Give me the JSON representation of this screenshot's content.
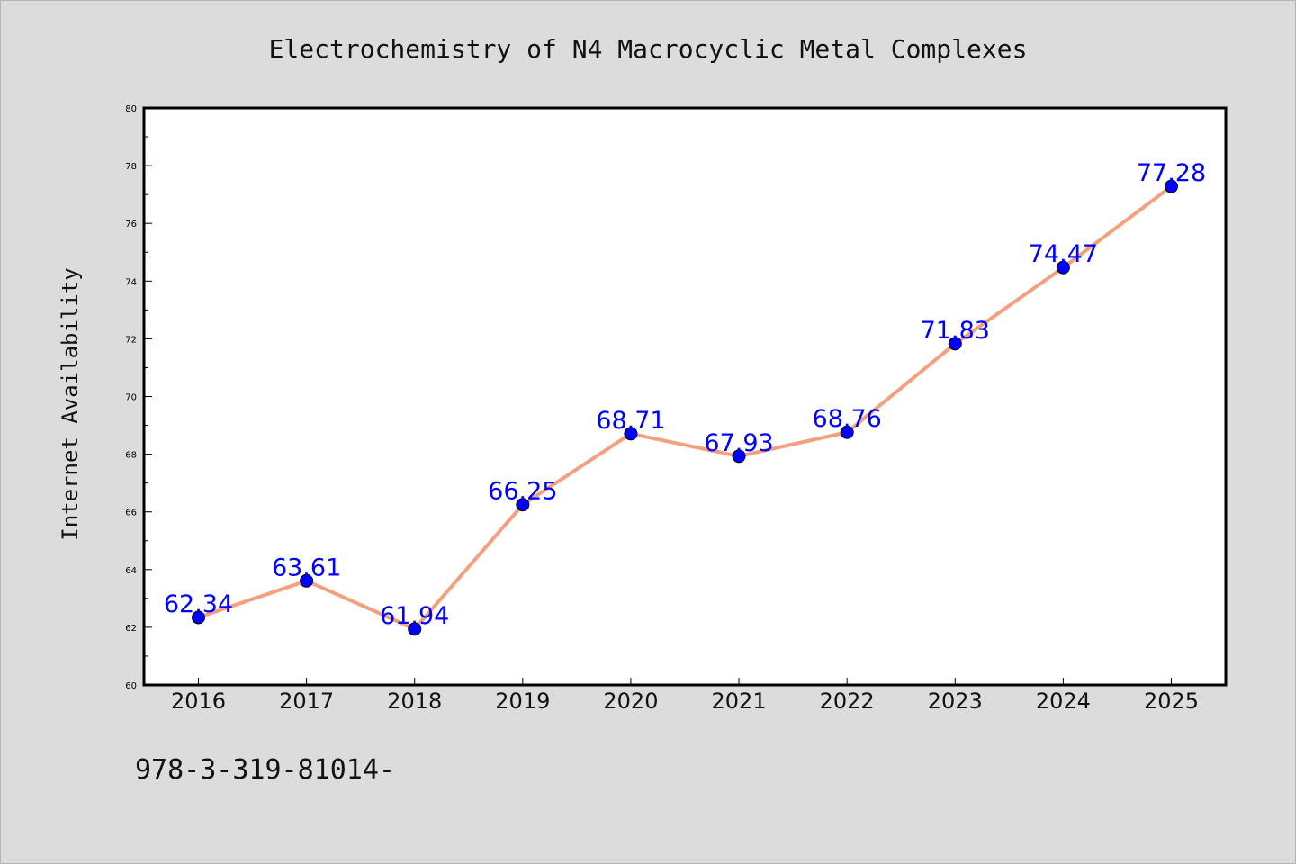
{
  "chart_data": {
    "type": "line",
    "title": "Electrochemistry of N4 Macrocyclic Metal Complexes",
    "xlabel": "",
    "ylabel": "Internet Availability",
    "categories": [
      "2016",
      "2017",
      "2018",
      "2019",
      "2020",
      "2021",
      "2022",
      "2023",
      "2024",
      "2025"
    ],
    "series": [
      {
        "values": [
          62.34,
          63.61,
          61.94,
          66.25,
          68.71,
          67.93,
          68.76,
          71.83,
          74.47,
          77.28
        ],
        "data_labels": [
          "62.34",
          "63.61",
          "61.94",
          "66.25",
          "68.71",
          "67.93",
          "68.76",
          "71.83",
          "74.47",
          "77.28"
        ],
        "line_color": "#f4a07e",
        "marker_color": "#0000ff"
      }
    ],
    "ylim": [
      60,
      80
    ],
    "yticks": [
      60,
      62,
      64,
      66,
      68,
      70,
      72,
      74,
      76,
      78,
      80
    ],
    "grid": false,
    "legend": "none",
    "plot_background": "#ffffff",
    "figure_background": "#dcdcdc"
  },
  "footer_text": "978-3-319-81014-"
}
